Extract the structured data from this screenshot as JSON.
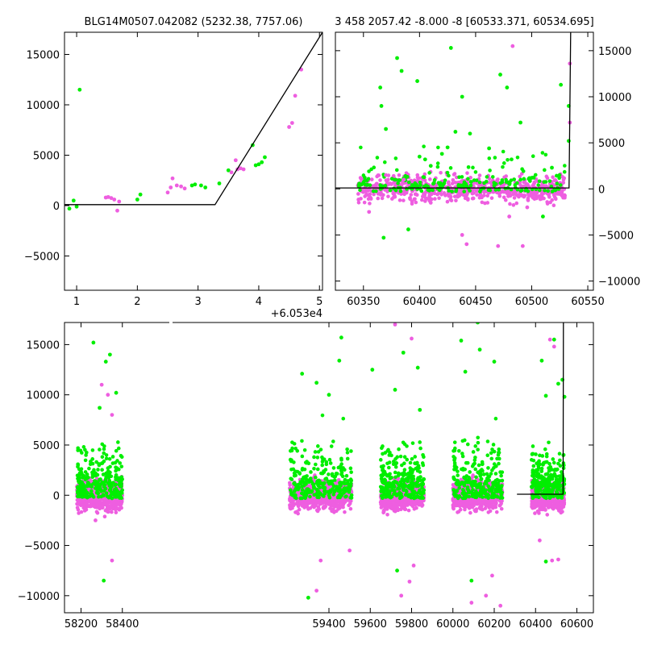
{
  "chart_data": [
    {
      "type": "scatter",
      "title": "BLG14M0507.042082 (5232.38, 7757.06)",
      "x_offset_label": "+6.053e4",
      "xlim": [
        60530.8,
        60535.05
      ],
      "ylim": [
        -8400,
        17200
      ],
      "xticks": [
        60531,
        60532,
        60533,
        60534,
        60535
      ],
      "xticklabels": [
        "1",
        "2",
        "3",
        "4",
        "5"
      ],
      "yticks": [
        -5000,
        0,
        5000,
        10000,
        15000
      ],
      "yticklabels": [
        "−5000",
        "0",
        "5000",
        "10000",
        "15000"
      ],
      "model_line": [
        [
          60530.8,
          100
        ],
        [
          60533.28,
          100
        ],
        [
          60535.05,
          17200
        ]
      ],
      "series": [
        {
          "color": "#00ee00",
          "points": [
            [
              60530.88,
              -300
            ],
            [
              60530.95,
              500
            ],
            [
              60531.0,
              -100
            ],
            [
              60531.05,
              11500
            ],
            [
              60532.0,
              600
            ],
            [
              60532.05,
              1100
            ],
            [
              60532.9,
              2000
            ],
            [
              60532.95,
              2100
            ],
            [
              60533.05,
              2000
            ],
            [
              60533.12,
              1800
            ],
            [
              60533.35,
              2200
            ],
            [
              60533.5,
              3500
            ],
            [
              60533.9,
              6000
            ],
            [
              60533.95,
              4000
            ],
            [
              60534.0,
              4100
            ],
            [
              60534.05,
              4300
            ],
            [
              60534.1,
              4800
            ]
          ]
        },
        {
          "color": "#ee5ee0",
          "points": [
            [
              60531.48,
              800
            ],
            [
              60531.52,
              850
            ],
            [
              60531.57,
              750
            ],
            [
              60531.62,
              600
            ],
            [
              60531.67,
              -500
            ],
            [
              60531.7,
              400
            ],
            [
              60532.5,
              1300
            ],
            [
              60532.55,
              1800
            ],
            [
              60532.58,
              2700
            ],
            [
              60532.65,
              2000
            ],
            [
              60532.72,
              1900
            ],
            [
              60532.78,
              1700
            ],
            [
              60533.55,
              3300
            ],
            [
              60533.62,
              4500
            ],
            [
              60533.65,
              3600
            ],
            [
              60533.7,
              3700
            ],
            [
              60533.75,
              3600
            ],
            [
              60534.5,
              7800
            ],
            [
              60534.55,
              8200
            ],
            [
              60534.6,
              10900
            ],
            [
              60534.7,
              13500
            ]
          ]
        }
      ]
    },
    {
      "type": "scatter",
      "title": "3 458 2057.42 -8.000 -8 [60533.371, 60534.695]",
      "xlim": [
        60325,
        60555
      ],
      "ylim": [
        -11000,
        17000
      ],
      "xticks": [
        60350,
        60400,
        60450,
        60500,
        60550
      ],
      "xticklabels": [
        "60350",
        "60400",
        "60450",
        "60500",
        "60550"
      ],
      "yticks": [
        -10000,
        -5000,
        0,
        5000,
        10000,
        15000
      ],
      "yticklabels": [
        "−10000",
        "−5000",
        "0",
        "5000",
        "10000",
        "15000"
      ],
      "model_line": [
        [
          60325,
          100
        ],
        [
          60533.3,
          100
        ],
        [
          60534.7,
          17000
        ]
      ],
      "series": [
        {
          "color": "#00ee00",
          "points": [
            [
              60365,
              11000
            ],
            [
              60366,
              9000
            ],
            [
              60370,
              6500
            ],
            [
              60380,
              14200
            ],
            [
              60384,
              12800
            ],
            [
              60398,
              11700
            ],
            [
              60400,
              3500
            ],
            [
              60405,
              3200
            ],
            [
              60410,
              2500
            ],
            [
              60420,
              3800
            ],
            [
              60425,
              4500
            ],
            [
              60428,
              15300
            ],
            [
              60432,
              6200
            ],
            [
              60438,
              10000
            ],
            [
              60445,
              6000
            ],
            [
              60462,
              4400
            ],
            [
              60472,
              12400
            ],
            [
              60478,
              11000
            ],
            [
              60482,
              3200
            ],
            [
              60490,
              7200
            ],
            [
              60500,
              1200
            ],
            [
              60518,
              2300
            ],
            [
              60526,
              11300
            ],
            [
              60533,
              9000
            ],
            [
              60533,
              5200
            ],
            [
              60368,
              -5300
            ],
            [
              60390,
              -4400
            ],
            [
              60510,
              -3000
            ]
          ]
        },
        {
          "color": "#ee5ee0",
          "points": [
            [
              60355,
              -2500
            ],
            [
              60370,
              1500
            ],
            [
              60386,
              1000
            ],
            [
              60410,
              -1500
            ],
            [
              60438,
              -5000
            ],
            [
              60442,
              -6000
            ],
            [
              60470,
              -6200
            ],
            [
              60480,
              -3000
            ],
            [
              60483,
              15500
            ],
            [
              60492,
              -6200
            ],
            [
              60496,
              -2000
            ],
            [
              60534,
              13600
            ],
            [
              60534,
              7200
            ]
          ]
        }
      ],
      "cloud_note": ""
    },
    {
      "type": "scatter",
      "title": "",
      "xlim": [
        58120,
        60680
      ],
      "ylim": [
        -11700,
        17200
      ],
      "xticks": [
        58200,
        58400,
        59400,
        59600,
        59800,
        60000,
        60200,
        60400,
        60600
      ],
      "xticklabels": [
        "58200",
        "58400",
        "59400",
        "59600",
        "59800",
        "60000",
        "60200",
        "60400",
        "60600"
      ],
      "yticks": [
        -10000,
        -5000,
        0,
        5000,
        10000,
        15000
      ],
      "yticklabels": [
        "−10000",
        "−5000",
        "0",
        "5000",
        "10000",
        "15000"
      ],
      "model_line": [
        [
          60310,
          100
        ],
        [
          60533.3,
          100
        ],
        [
          60534.7,
          17200
        ]
      ],
      "seasons": [
        [
          58180,
          58400
        ],
        [
          59210,
          59510
        ],
        [
          59650,
          59860
        ],
        [
          60000,
          60240
        ],
        [
          60380,
          60540
        ]
      ],
      "series": [
        {
          "color": "#00ee00",
          "points": [
            [
              58260,
              15200
            ],
            [
              58320,
              13300
            ],
            [
              58340,
              14000
            ],
            [
              58290,
              8700
            ],
            [
              58370,
              10200
            ],
            [
              58310,
              -8500
            ],
            [
              59270,
              12100
            ],
            [
              59340,
              11200
            ],
            [
              59460,
              15700
            ],
            [
              59450,
              13400
            ],
            [
              59400,
              10000
            ],
            [
              59300,
              -10200
            ],
            [
              59610,
              12500
            ],
            [
              59720,
              10500
            ],
            [
              59830,
              12700
            ],
            [
              59760,
              14200
            ],
            [
              59840,
              8500
            ],
            [
              59730,
              -7500
            ],
            [
              60040,
              15400
            ],
            [
              60200,
              13300
            ],
            [
              60130,
              14500
            ],
            [
              60120,
              17200
            ],
            [
              60060,
              12300
            ],
            [
              60090,
              -8500
            ],
            [
              60490,
              15500
            ],
            [
              60430,
              13400
            ],
            [
              60510,
              11100
            ],
            [
              60450,
              9900
            ],
            [
              60530,
              11500
            ],
            [
              60540,
              9800
            ],
            [
              60450,
              -6600
            ]
          ]
        },
        {
          "color": "#ee5ee0",
          "points": [
            [
              58300,
              11000
            ],
            [
              58330,
              10000
            ],
            [
              58350,
              8000
            ],
            [
              58270,
              -2500
            ],
            [
              58350,
              -6500
            ],
            [
              59340,
              -9500
            ],
            [
              59360,
              -6500
            ],
            [
              59500,
              -5500
            ],
            [
              59800,
              15600
            ],
            [
              59720,
              17000
            ],
            [
              59750,
              -10000
            ],
            [
              59790,
              -8600
            ],
            [
              59810,
              -7000
            ],
            [
              60090,
              -10700
            ],
            [
              60160,
              -10000
            ],
            [
              60190,
              -8000
            ],
            [
              60230,
              -11000
            ],
            [
              60470,
              15500
            ],
            [
              60490,
              14800
            ],
            [
              60420,
              -4500
            ],
            [
              60480,
              -6500
            ],
            [
              60510,
              -6400
            ]
          ]
        }
      ]
    }
  ]
}
